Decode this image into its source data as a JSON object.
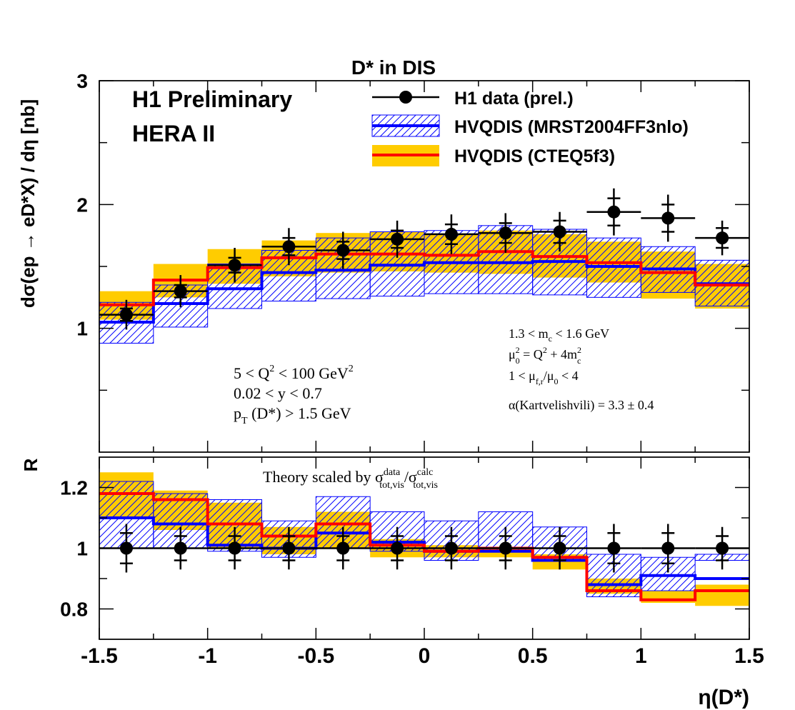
{
  "chart_data": [
    {
      "type": "line",
      "panel": "top",
      "title": "D* in DIS",
      "ylabel": "dσ(ep → eD*X) / dη [nb]",
      "xlim": [
        -1.5,
        1.5
      ],
      "ylim": [
        0.0,
        3.0
      ],
      "yticks": [
        "1",
        "2",
        "3"
      ],
      "texts": {
        "h1": "H1 Preliminary",
        "hera": "HERA II",
        "cut_q2": "5 < Q² < 100 GeV²",
        "cut_y": "0.02 < y < 0.7",
        "cut_pt": "p_T (D*) > 1.5 GeV",
        "mc": "1.3 < m_c < 1.6 GeV",
        "mu0": "μ₀² = Q² + 4m_c²",
        "mufr": "1 < μ_f,r/μ₀ < 4",
        "alpha": "α(Kartvelishvili) = 3.3 ± 0.4"
      },
      "legend": {
        "position": "top-right",
        "data": "H1 data (prel.)",
        "mrst": "HVQDIS (MRST2004FF3nlo)",
        "cteq": "HVQDIS (CTEQ5f3)"
      },
      "bin_edges": [
        -1.5,
        -1.25,
        -1.0,
        -0.75,
        -0.5,
        -0.25,
        0.0,
        0.25,
        0.5,
        0.75,
        1.0,
        1.25,
        1.5
      ],
      "data": {
        "name": "H1 data (prel.)",
        "x": [
          -1.375,
          -1.125,
          -0.875,
          -0.625,
          -0.375,
          -0.125,
          0.125,
          0.375,
          0.625,
          0.875,
          1.125,
          1.375
        ],
        "y": [
          1.11,
          1.3,
          1.51,
          1.66,
          1.63,
          1.72,
          1.76,
          1.77,
          1.78,
          1.94,
          1.89,
          1.73
        ],
        "err_stat": [
          0.05,
          0.05,
          0.06,
          0.07,
          0.07,
          0.07,
          0.08,
          0.08,
          0.09,
          0.11,
          0.11,
          0.08
        ],
        "err_tot": [
          0.12,
          0.13,
          0.14,
          0.15,
          0.15,
          0.15,
          0.16,
          0.16,
          0.16,
          0.19,
          0.19,
          0.14
        ]
      },
      "mrst": {
        "name": "HVQDIS (MRST2004FF3nlo)",
        "color": "#0000ff",
        "central": [
          1.05,
          1.2,
          1.32,
          1.45,
          1.47,
          1.51,
          1.53,
          1.53,
          1.54,
          1.5,
          1.48,
          1.36
        ],
        "low": [
          0.88,
          1.01,
          1.16,
          1.22,
          1.24,
          1.26,
          1.28,
          1.28,
          1.27,
          1.25,
          1.29,
          1.18
        ],
        "high": [
          1.21,
          1.35,
          1.52,
          1.63,
          1.73,
          1.78,
          1.79,
          1.83,
          1.8,
          1.73,
          1.66,
          1.55
        ]
      },
      "cteq": {
        "name": "HVQDIS (CTEQ5f3)",
        "color": "#ff0000",
        "band_color": "#ffcc00",
        "central": [
          1.19,
          1.39,
          1.49,
          1.57,
          1.6,
          1.6,
          1.59,
          1.62,
          1.58,
          1.53,
          1.45,
          1.35
        ],
        "low": [
          1.07,
          1.25,
          1.36,
          1.42,
          1.45,
          1.46,
          1.45,
          1.44,
          1.41,
          1.37,
          1.24,
          1.16
        ],
        "high": [
          1.3,
          1.52,
          1.64,
          1.71,
          1.77,
          1.78,
          1.76,
          1.79,
          1.76,
          1.7,
          1.62,
          1.52
        ]
      }
    },
    {
      "type": "line",
      "panel": "bottom",
      "ylabel": "R",
      "xlabel": "η(D*)",
      "xlim": [
        -1.5,
        1.5
      ],
      "ylim": [
        0.7,
        1.3
      ],
      "yticks": [
        "0.8",
        "1",
        "1.2"
      ],
      "xticks": [
        "-1.5",
        "-1",
        "-0.5",
        "0",
        "0.5",
        "1",
        "1.5"
      ],
      "annotation": "Theory scaled by σ^data_tot,vis/σ^calc_tot,vis",
      "data": {
        "x": [
          -1.375,
          -1.125,
          -0.875,
          -0.625,
          -0.375,
          -0.125,
          0.125,
          0.375,
          0.625,
          0.875,
          1.125,
          1.375
        ],
        "y": [
          1.0,
          1.0,
          1.0,
          1.0,
          1.0,
          1.0,
          1.0,
          1.0,
          1.0,
          1.0,
          1.0,
          1.0
        ],
        "err_stat": [
          0.05,
          0.04,
          0.04,
          0.04,
          0.04,
          0.04,
          0.04,
          0.04,
          0.04,
          0.05,
          0.05,
          0.04
        ],
        "err_tot": [
          0.08,
          0.07,
          0.07,
          0.07,
          0.07,
          0.07,
          0.07,
          0.07,
          0.07,
          0.08,
          0.08,
          0.07
        ]
      },
      "mrst": {
        "central": [
          1.1,
          1.08,
          1.01,
          1.0,
          1.05,
          1.02,
          0.99,
          0.99,
          0.96,
          0.88,
          0.91,
          0.9
        ],
        "low": [
          1.0,
          1.0,
          0.99,
          0.97,
          1.0,
          0.99,
          0.96,
          0.99,
          0.96,
          0.84,
          0.86,
          0.96
        ],
        "high": [
          1.22,
          1.18,
          1.16,
          1.09,
          1.17,
          1.12,
          1.09,
          1.12,
          1.07,
          0.98,
          0.97,
          0.98
        ]
      },
      "cteq": {
        "central": [
          1.18,
          1.16,
          1.08,
          1.04,
          1.08,
          1.01,
          0.99,
          1.0,
          0.97,
          0.86,
          0.83,
          0.86
        ],
        "low": [
          1.1,
          1.06,
          1.0,
          0.98,
          1.0,
          0.97,
          0.97,
          0.97,
          0.93,
          0.85,
          0.82,
          0.81
        ],
        "high": [
          1.25,
          1.19,
          1.15,
          1.07,
          1.12,
          1.03,
          1.01,
          1.0,
          0.98,
          0.9,
          0.86,
          0.88
        ]
      }
    }
  ]
}
